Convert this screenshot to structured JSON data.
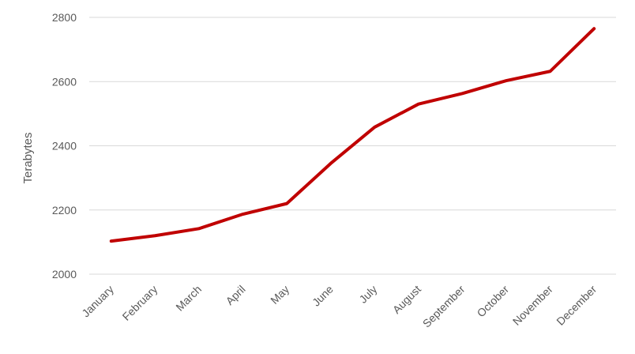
{
  "chart_data": {
    "type": "line",
    "title": "",
    "xlabel": "",
    "ylabel": "Terabytes",
    "categories": [
      "January",
      "February",
      "March",
      "April",
      "May",
      "June",
      "July",
      "August",
      "September",
      "October",
      "November",
      "December"
    ],
    "series": [
      {
        "values": [
          2103,
          2120,
          2142,
          2187,
          2220,
          2345,
          2458,
          2530,
          2563,
          2603,
          2632,
          2765
        ],
        "color": "#C00000"
      }
    ],
    "ylim": [
      2000,
      2800
    ],
    "yticks": [
      2000,
      2200,
      2400,
      2600,
      2800
    ],
    "ytick_labels": [
      "2000",
      "2200",
      "2400",
      "2600",
      "2800"
    ],
    "grid": true,
    "legend": "none",
    "colors": {
      "grid": "#D9D9D9",
      "text": "#595959",
      "line": "#C00000"
    }
  }
}
